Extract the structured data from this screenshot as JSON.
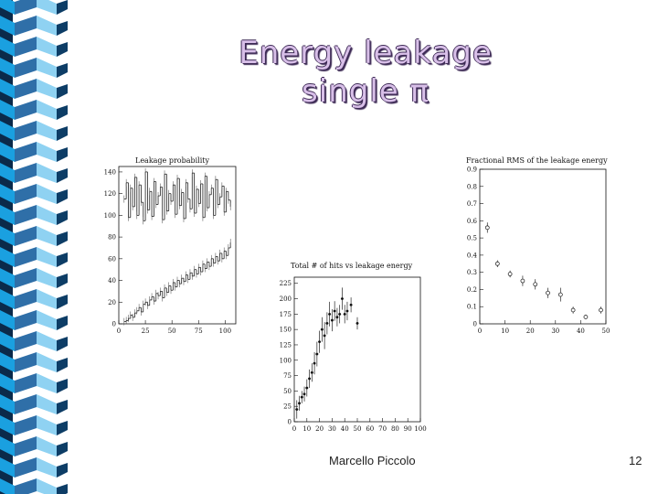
{
  "slide": {
    "title_line1": "Energy leakage",
    "title_line2": "single π",
    "author": "Marcello Piccolo",
    "page_number": "12",
    "accent_color": "#1aa0e0",
    "title_color": "#d8bfe8"
  },
  "chart_data": [
    {
      "id": "leakage-probability",
      "type": "line",
      "title": "Leakage probability",
      "xlim": [
        0,
        110
      ],
      "ylim": [
        0,
        145
      ],
      "xticks": [
        0,
        25,
        50,
        75,
        100
      ],
      "yticks": [
        0,
        20,
        40,
        60,
        80,
        100,
        120,
        140
      ],
      "x": [
        5,
        7,
        9,
        11,
        13,
        15,
        17,
        19,
        21,
        23,
        25,
        27,
        29,
        31,
        33,
        35,
        37,
        39,
        41,
        43,
        45,
        47,
        49,
        51,
        53,
        55,
        57,
        59,
        61,
        63,
        65,
        67,
        69,
        71,
        73,
        75,
        77,
        79,
        81,
        83,
        85,
        87,
        89,
        91,
        93,
        95,
        97,
        99,
        101,
        103,
        105
      ],
      "series": [
        {
          "values": [
            115,
            130,
            98,
            125,
            108,
            135,
            100,
            128,
            112,
            95,
            140,
            105,
            122,
            99,
            131,
            110,
            118,
            126,
            96,
            138,
            104,
            120,
            113,
            128,
            101,
            134,
            109,
            121,
            97,
            130,
            115,
            106,
            139,
            102,
            124,
            111,
            129,
            98,
            136,
            107,
            119,
            125,
            100,
            133,
            110,
            117,
            127,
            103,
            122,
            114,
            108
          ]
        },
        {
          "values": [
            2,
            3,
            5,
            8,
            6,
            10,
            12,
            15,
            11,
            18,
            20,
            17,
            22,
            25,
            21,
            28,
            26,
            30,
            24,
            33,
            29,
            35,
            31,
            38,
            34,
            40,
            37,
            42,
            39,
            45,
            41,
            47,
            44,
            50,
            46,
            52,
            48,
            55,
            51,
            57,
            53,
            60,
            56,
            62,
            58,
            65,
            60,
            67,
            63,
            70,
            75
          ]
        }
      ]
    },
    {
      "id": "hits-vs-leakage",
      "type": "scatter",
      "title": "Total # of hits vs leakage energy",
      "xlim": [
        0,
        100
      ],
      "ylim": [
        0,
        235
      ],
      "xticks": [
        0,
        10,
        20,
        30,
        40,
        50,
        60,
        70,
        80,
        90,
        100
      ],
      "yticks": [
        0,
        25,
        50,
        75,
        100,
        125,
        150,
        175,
        200,
        225
      ],
      "x": [
        2,
        4,
        6,
        8,
        10,
        12,
        14,
        16,
        18,
        20,
        22,
        24,
        26,
        28,
        30,
        32,
        34,
        36,
        38,
        40,
        42,
        45,
        50
      ],
      "y": [
        20,
        30,
        40,
        45,
        55,
        70,
        80,
        95,
        110,
        130,
        150,
        140,
        160,
        175,
        165,
        180,
        170,
        175,
        200,
        175,
        180,
        190,
        160
      ],
      "yerr": [
        15,
        12,
        10,
        12,
        14,
        15,
        15,
        18,
        20,
        18,
        20,
        22,
        18,
        20,
        18,
        16,
        15,
        15,
        18,
        15,
        15,
        12,
        10
      ]
    },
    {
      "id": "fractional-rms",
      "type": "scatter",
      "title": "Fractional RMS of the leakage energy",
      "xlim": [
        0,
        50
      ],
      "ylim": [
        0,
        0.9
      ],
      "xticks": [
        0,
        10,
        20,
        30,
        40,
        50
      ],
      "yticks": [
        0,
        0.1,
        0.2,
        0.3,
        0.4,
        0.5,
        0.6,
        0.7,
        0.8,
        0.9
      ],
      "x": [
        3,
        7,
        12,
        17,
        22,
        27,
        32,
        37,
        42,
        48
      ],
      "y": [
        0.56,
        0.35,
        0.29,
        0.25,
        0.23,
        0.18,
        0.17,
        0.08,
        0.04,
        0.08
      ],
      "yerr": [
        0.03,
        0.02,
        0.02,
        0.03,
        0.03,
        0.03,
        0.04,
        0.02,
        0.01,
        0.02
      ]
    }
  ]
}
